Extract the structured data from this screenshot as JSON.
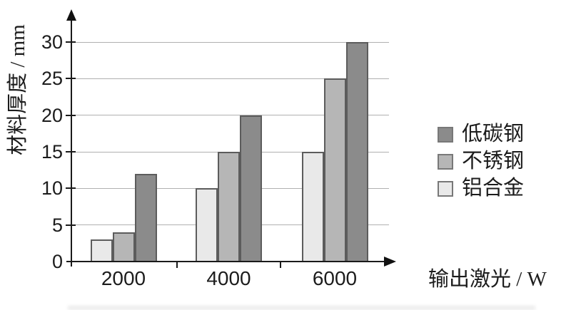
{
  "chart_data": {
    "type": "bar",
    "categories": [
      "2000",
      "4000",
      "6000"
    ],
    "series": [
      {
        "name": "低碳钢",
        "values": [
          12,
          20,
          30
        ],
        "color": "#8b8b8b"
      },
      {
        "name": "不锈钢",
        "values": [
          4,
          15,
          25
        ],
        "color": "#b6b6b6"
      },
      {
        "name": "铝合金",
        "values": [
          3,
          10,
          15
        ],
        "color": "#e9e9e9"
      }
    ],
    "bar_draw_order_left_to_right": [
      "铝合金",
      "不锈钢",
      "低碳钢"
    ],
    "title": "",
    "xlabel": "输出激光 / W",
    "ylabel": "材料厚度 / mm",
    "ylim": [
      0,
      30
    ],
    "yticks": [
      0,
      5,
      10,
      15,
      20,
      25,
      30
    ],
    "grid": "horizontal",
    "legend_position": "right",
    "bar_border_color": "#5c5c5c",
    "axis_color": "#1a1a1a",
    "gridline_color": "#b0b0b0"
  }
}
